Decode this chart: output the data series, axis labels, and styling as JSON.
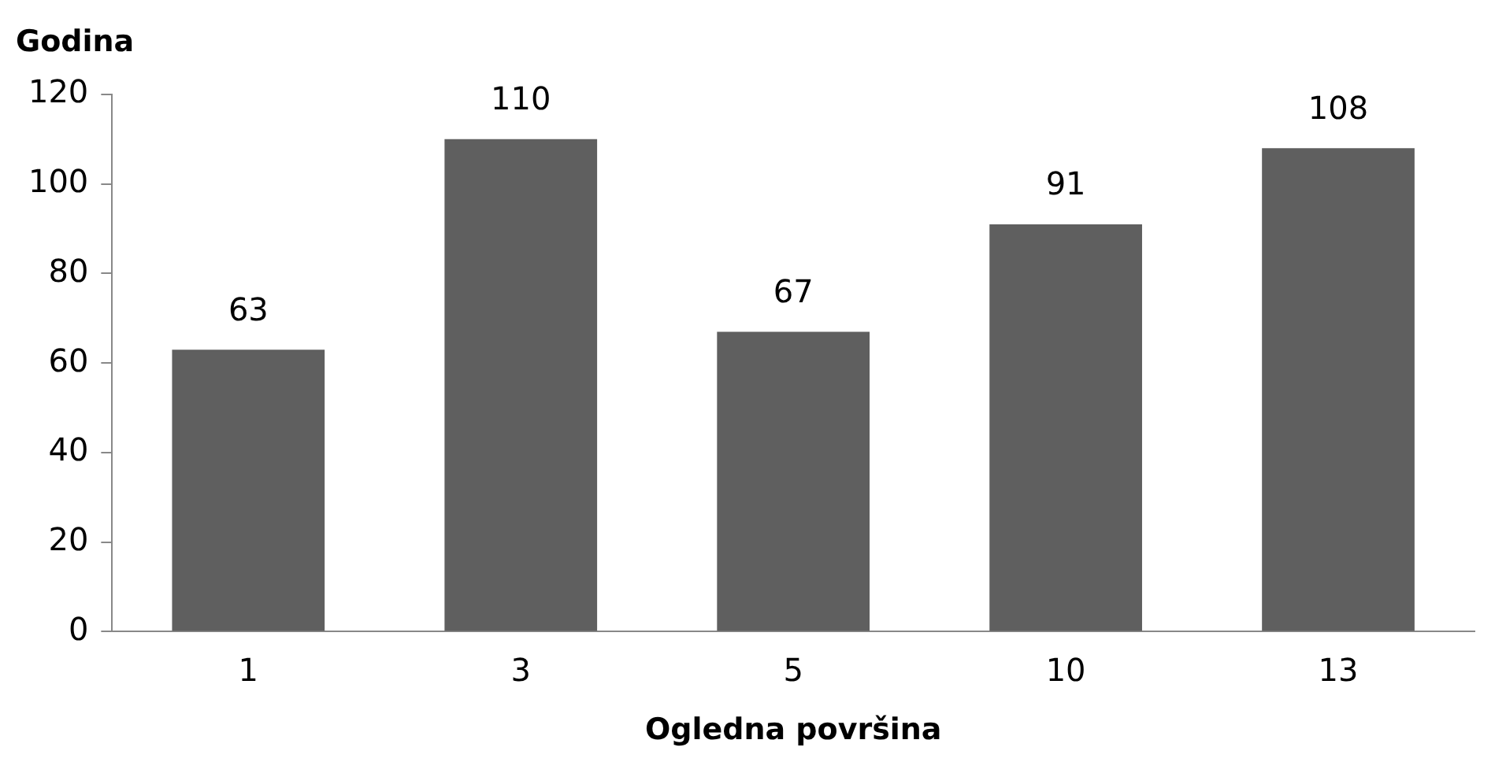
{
  "chart_data": {
    "type": "bar",
    "xlabel": "Ogledna površina",
    "ylabel": "Godina",
    "categories": [
      "1",
      "3",
      "5",
      "10",
      "13"
    ],
    "values": [
      63,
      110,
      67,
      91,
      108
    ],
    "color": "#5f5f5f",
    "ylim": [
      0,
      120
    ],
    "yticks": [
      0,
      20,
      40,
      60,
      80,
      100,
      120
    ],
    "grid": false,
    "legend": false,
    "data_labels": true
  }
}
